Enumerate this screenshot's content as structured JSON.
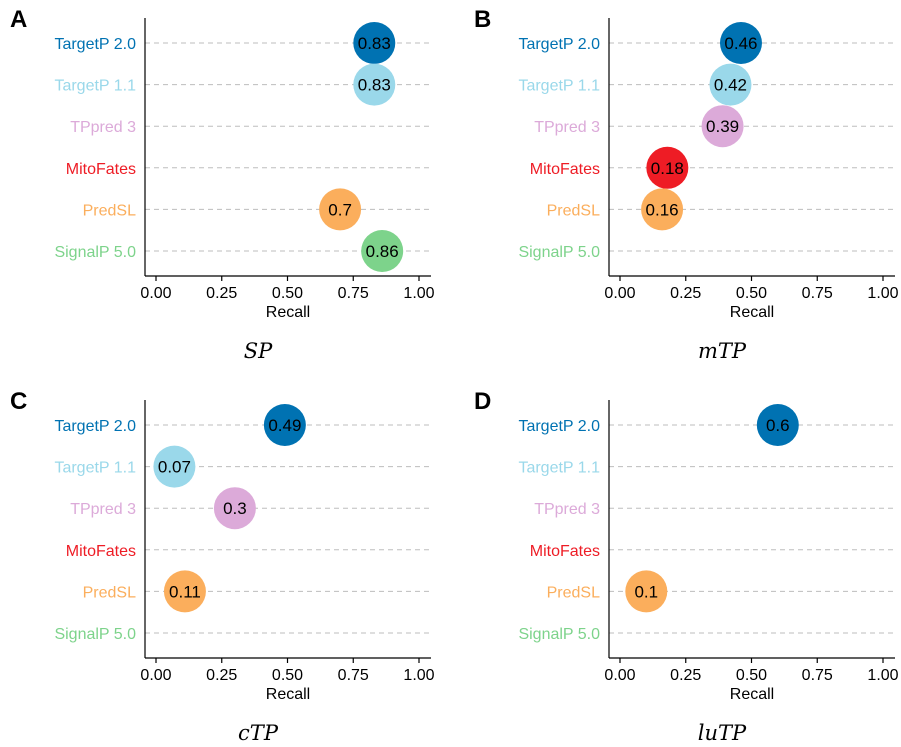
{
  "chart_data": [
    {
      "panel": "A",
      "type": "scatter",
      "caption": "SP",
      "xlabel": "Recall",
      "xlim": [
        0,
        1
      ],
      "xticks": [
        "0.00",
        "0.25",
        "0.50",
        "0.75",
        "1.00"
      ],
      "categories": [
        "TargetP 2.0",
        "TargetP 1.1",
        "TPpred 3",
        "MitoFates",
        "PredSL",
        "SignalP 5.0"
      ],
      "values": [
        0.83,
        0.83,
        null,
        null,
        0.7,
        0.86
      ],
      "labels": [
        "0.83",
        "0.83",
        "",
        "",
        "0.7",
        "0.86"
      ]
    },
    {
      "panel": "B",
      "type": "scatter",
      "caption": "mTP",
      "xlabel": "Recall",
      "xlim": [
        0,
        1
      ],
      "xticks": [
        "0.00",
        "0.25",
        "0.50",
        "0.75",
        "1.00"
      ],
      "categories": [
        "TargetP 2.0",
        "TargetP 1.1",
        "TPpred 3",
        "MitoFates",
        "PredSL",
        "SignalP 5.0"
      ],
      "values": [
        0.46,
        0.42,
        0.39,
        0.18,
        0.16,
        null
      ],
      "labels": [
        "0.46",
        "0.42",
        "0.39",
        "0.18",
        "0.16",
        ""
      ]
    },
    {
      "panel": "C",
      "type": "scatter",
      "caption": "cTP",
      "xlabel": "Recall",
      "xlim": [
        0,
        1
      ],
      "xticks": [
        "0.00",
        "0.25",
        "0.50",
        "0.75",
        "1.00"
      ],
      "categories": [
        "TargetP 2.0",
        "TargetP 1.1",
        "TPpred 3",
        "MitoFates",
        "PredSL",
        "SignalP 5.0"
      ],
      "values": [
        0.49,
        0.07,
        0.3,
        null,
        0.11,
        null
      ],
      "labels": [
        "0.49",
        "0.07",
        "0.3",
        "",
        "0.11",
        ""
      ]
    },
    {
      "panel": "D",
      "type": "scatter",
      "caption": "luTP",
      "xlabel": "Recall",
      "xlim": [
        0,
        1
      ],
      "xticks": [
        "0.00",
        "0.25",
        "0.50",
        "0.75",
        "1.00"
      ],
      "categories": [
        "TargetP 2.0",
        "TargetP 1.1",
        "TPpred 3",
        "MitoFates",
        "PredSL",
        "SignalP 5.0"
      ],
      "values": [
        0.6,
        null,
        null,
        null,
        0.1,
        null
      ],
      "labels": [
        "0.6",
        "",
        "",
        "",
        "0.1",
        ""
      ]
    }
  ],
  "colors": {
    "TargetP 2.0": "#0072b2",
    "TargetP 1.1": "#9ad8ea",
    "TPpred 3": "#dcaad9",
    "MitoFates": "#ee1c25",
    "PredSL": "#fbae5c",
    "SignalP 5.0": "#7dd38b"
  },
  "grid": "horizontal dashed",
  "legend": "none"
}
